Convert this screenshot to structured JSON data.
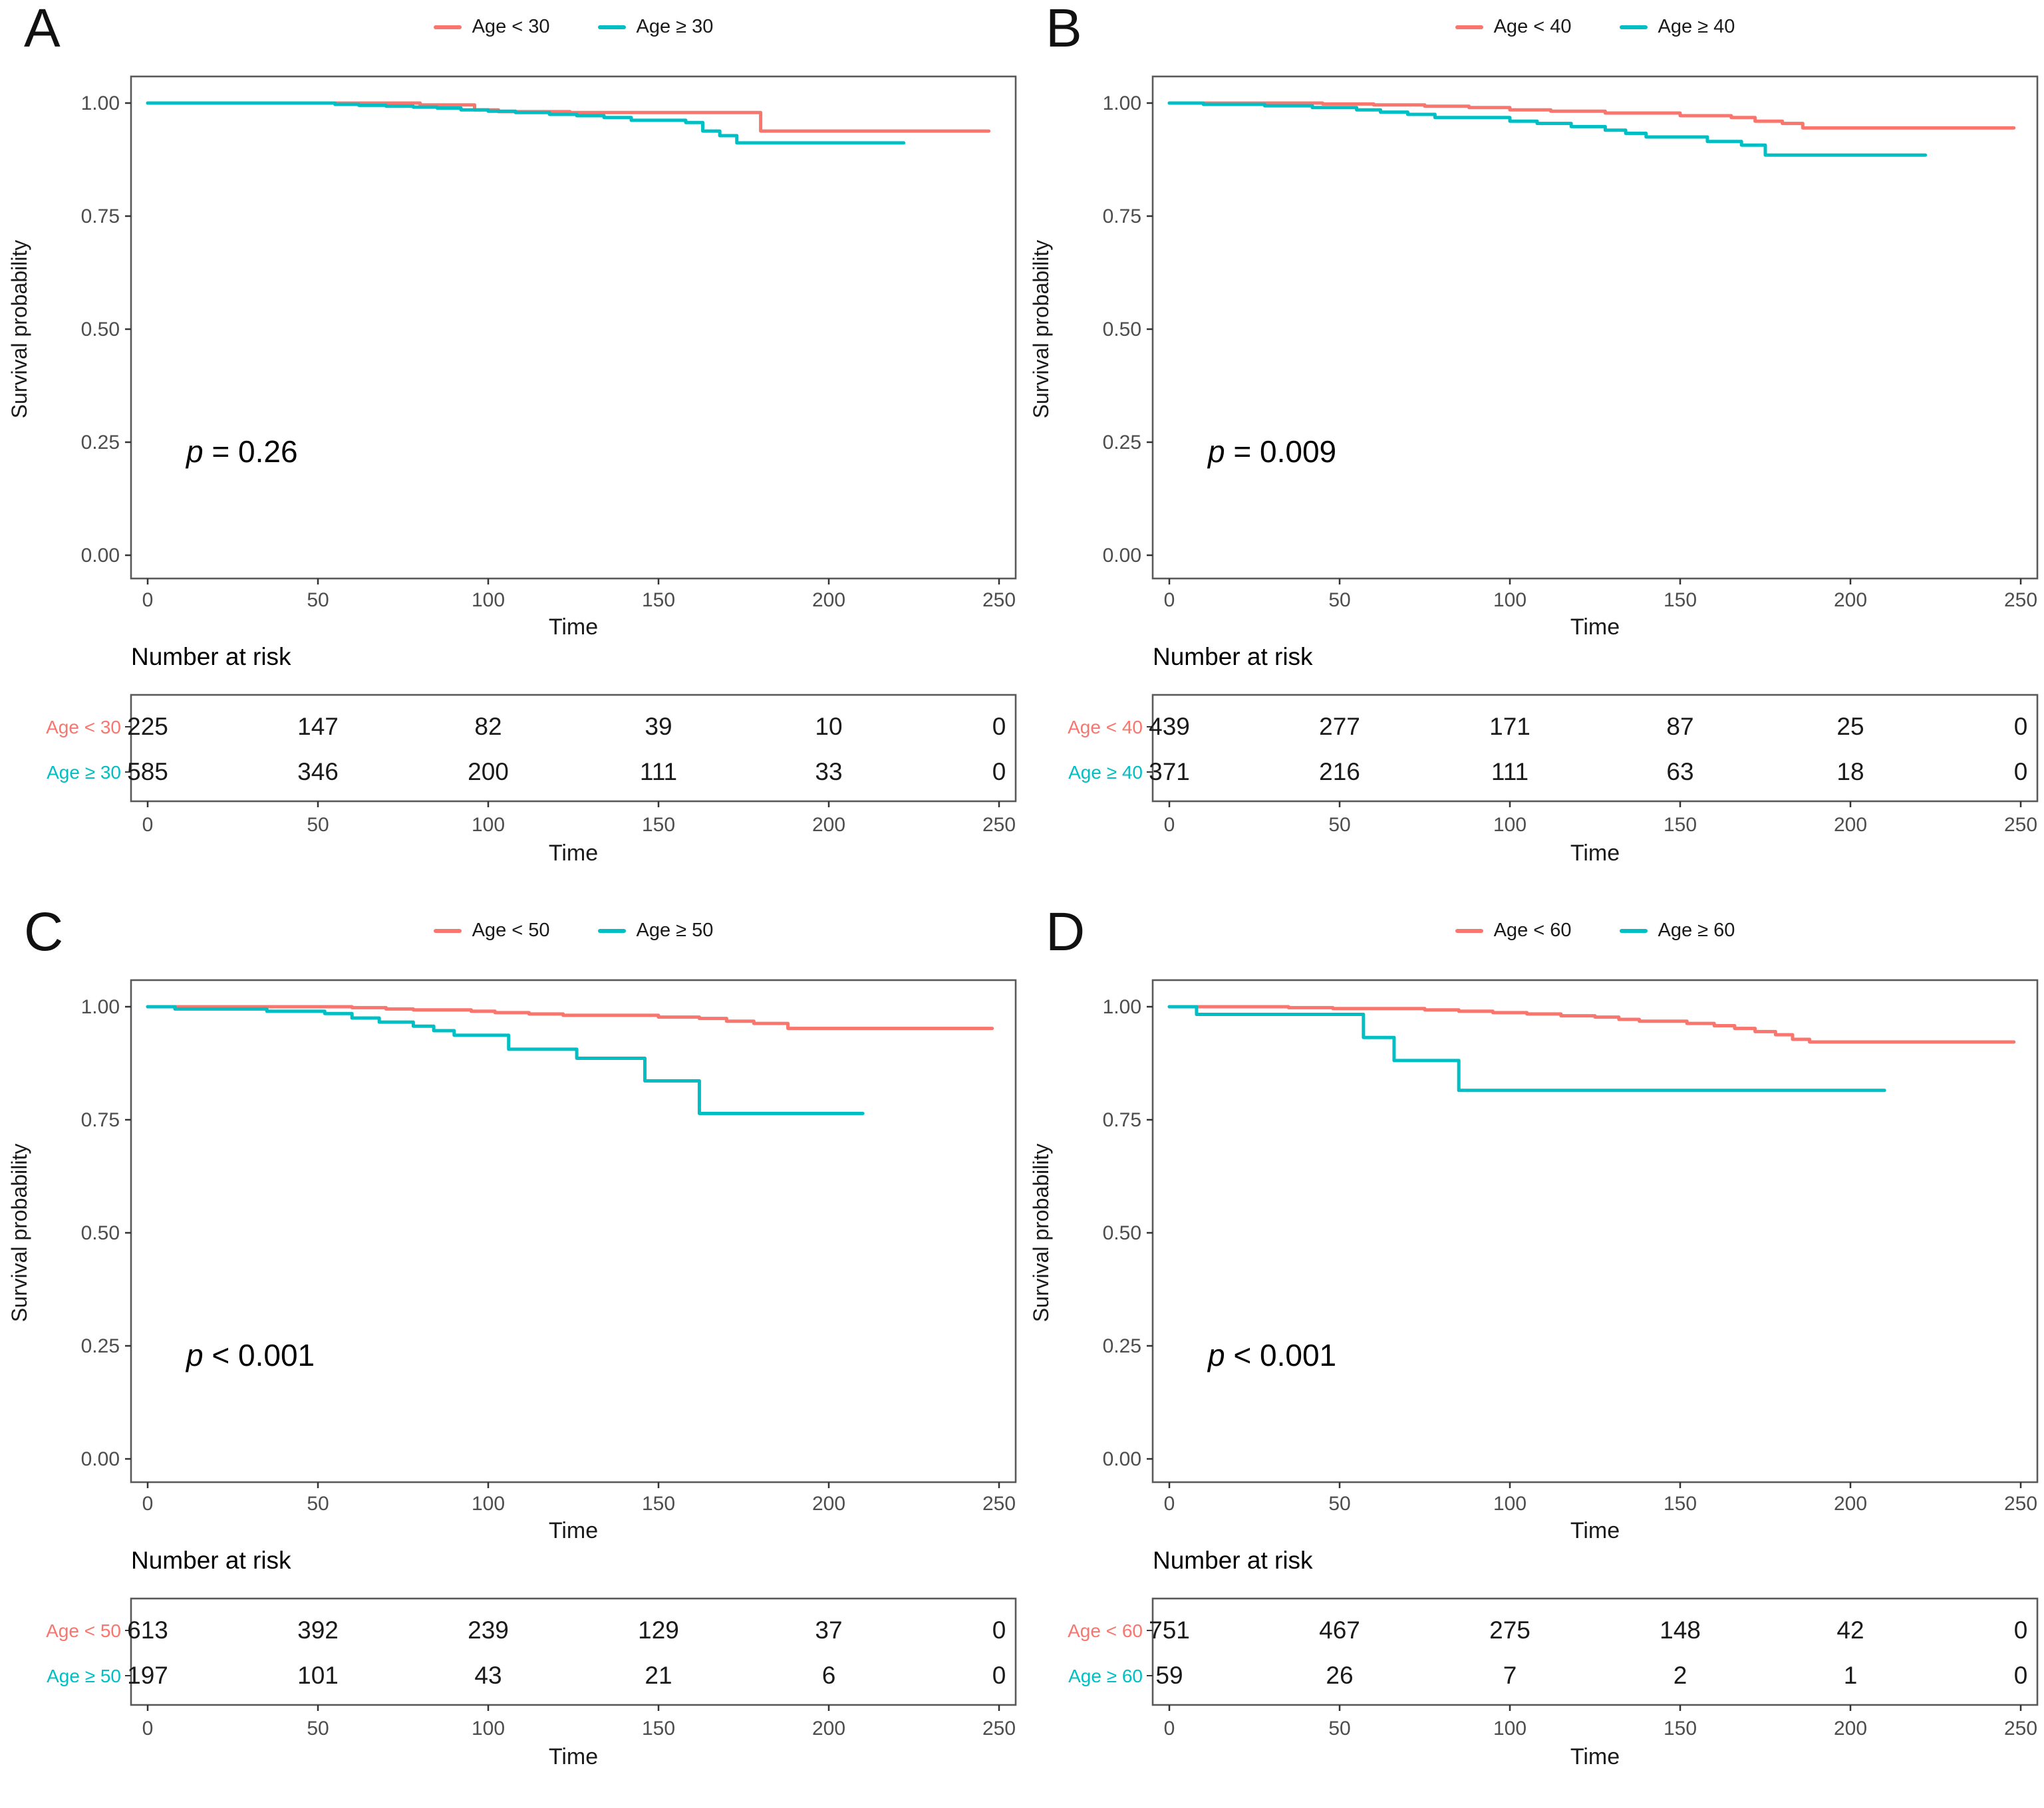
{
  "figure": {
    "background": "#ffffff"
  },
  "colors": {
    "group1": "#F8766D",
    "group2": "#00BFC4",
    "frame": "#595959",
    "tick": "#333333",
    "tick_label": "#4d4d4d",
    "text": "#1a1a1a"
  },
  "axes": {
    "xlabel": "Time",
    "ylabel": "Survival probability",
    "x_ticks": [
      0,
      50,
      100,
      150,
      200,
      250
    ],
    "y_tick_values": [
      1.0,
      0.75,
      0.5,
      0.25,
      0.0
    ],
    "y_tick_labels": [
      "1.00",
      "0.75",
      "0.50",
      "0.25",
      "0.00"
    ],
    "xlim": [
      0,
      250
    ],
    "ylim": [
      0,
      1.0
    ],
    "grid": false,
    "legend_position": "top"
  },
  "risk_title": "Number at risk",
  "chart_data": [
    {
      "panel": "A",
      "type": "line",
      "subtype": "kaplan-meier-step",
      "p_value": "p = 0.26",
      "series": [
        {
          "name": "Age < 30",
          "color": "#F8766D",
          "steps": [
            [
              0,
              1
            ],
            [
              80,
              0.996
            ],
            [
              96,
              0.985
            ],
            [
              103,
              0.981
            ],
            [
              124,
              0.979
            ],
            [
              180,
              0.938
            ],
            [
              247,
              0.938
            ]
          ]
        },
        {
          "name": "Age ≥ 30",
          "color": "#00BFC4",
          "steps": [
            [
              0,
              1
            ],
            [
              55,
              0.997
            ],
            [
              62,
              0.995
            ],
            [
              70,
              0.993
            ],
            [
              78,
              0.991
            ],
            [
              85,
              0.989
            ],
            [
              92,
              0.985
            ],
            [
              100,
              0.982
            ],
            [
              108,
              0.979
            ],
            [
              118,
              0.975
            ],
            [
              126,
              0.972
            ],
            [
              134,
              0.968
            ],
            [
              142,
              0.962
            ],
            [
              158,
              0.957
            ],
            [
              163,
              0.938
            ],
            [
              168,
              0.928
            ],
            [
              173,
              0.912
            ],
            [
              222,
              0.912
            ]
          ]
        }
      ],
      "risk_table": {
        "times": [
          0,
          50,
          100,
          150,
          200,
          250
        ],
        "rows": [
          {
            "label": "Age < 30",
            "counts": [
              225,
              147,
              82,
              39,
              10,
              0
            ]
          },
          {
            "label": "Age ≥ 30",
            "counts": [
              585,
              346,
              200,
              111,
              33,
              0
            ]
          }
        ]
      }
    },
    {
      "panel": "B",
      "type": "line",
      "subtype": "kaplan-meier-step",
      "p_value": "p = 0.009",
      "series": [
        {
          "name": "Age < 40",
          "color": "#F8766D",
          "steps": [
            [
              0,
              1
            ],
            [
              45,
              0.998
            ],
            [
              60,
              0.996
            ],
            [
              75,
              0.993
            ],
            [
              88,
              0.99
            ],
            [
              100,
              0.985
            ],
            [
              112,
              0.982
            ],
            [
              128,
              0.978
            ],
            [
              150,
              0.972
            ],
            [
              165,
              0.968
            ],
            [
              172,
              0.96
            ],
            [
              180,
              0.955
            ],
            [
              186,
              0.945
            ],
            [
              248,
              0.945
            ]
          ]
        },
        {
          "name": "Age ≥ 40",
          "color": "#00BFC4",
          "steps": [
            [
              0,
              1
            ],
            [
              10,
              0.997
            ],
            [
              28,
              0.994
            ],
            [
              42,
              0.99
            ],
            [
              55,
              0.985
            ],
            [
              62,
              0.98
            ],
            [
              70,
              0.975
            ],
            [
              78,
              0.968
            ],
            [
              100,
              0.96
            ],
            [
              108,
              0.955
            ],
            [
              118,
              0.948
            ],
            [
              128,
              0.94
            ],
            [
              134,
              0.933
            ],
            [
              140,
              0.925
            ],
            [
              158,
              0.915
            ],
            [
              168,
              0.907
            ],
            [
              175,
              0.885
            ],
            [
              222,
              0.885
            ]
          ]
        }
      ],
      "risk_table": {
        "times": [
          0,
          50,
          100,
          150,
          200,
          250
        ],
        "rows": [
          {
            "label": "Age < 40",
            "counts": [
              439,
              277,
              171,
              87,
              25,
              0
            ]
          },
          {
            "label": "Age ≥ 40",
            "counts": [
              371,
              216,
              111,
              63,
              18,
              0
            ]
          }
        ]
      }
    },
    {
      "panel": "C",
      "type": "line",
      "subtype": "kaplan-meier-step",
      "p_value": "p < 0.001",
      "series": [
        {
          "name": "Age < 50",
          "color": "#F8766D",
          "steps": [
            [
              0,
              1
            ],
            [
              60,
              0.998
            ],
            [
              70,
              0.995
            ],
            [
              78,
              0.993
            ],
            [
              95,
              0.99
            ],
            [
              102,
              0.987
            ],
            [
              112,
              0.984
            ],
            [
              122,
              0.981
            ],
            [
              150,
              0.977
            ],
            [
              162,
              0.974
            ],
            [
              170,
              0.968
            ],
            [
              178,
              0.963
            ],
            [
              188,
              0.952
            ],
            [
              248,
              0.952
            ]
          ]
        },
        {
          "name": "Age ≥ 50",
          "color": "#00BFC4",
          "steps": [
            [
              0,
              1
            ],
            [
              8,
              0.995
            ],
            [
              35,
              0.99
            ],
            [
              52,
              0.985
            ],
            [
              60,
              0.975
            ],
            [
              68,
              0.966
            ],
            [
              78,
              0.957
            ],
            [
              84,
              0.947
            ],
            [
              90,
              0.937
            ],
            [
              106,
              0.906
            ],
            [
              126,
              0.886
            ],
            [
              146,
              0.836
            ],
            [
              162,
              0.764
            ],
            [
              210,
              0.764
            ]
          ]
        }
      ],
      "risk_table": {
        "times": [
          0,
          50,
          100,
          150,
          200,
          250
        ],
        "rows": [
          {
            "label": "Age < 50",
            "counts": [
              613,
              392,
              239,
              129,
              37,
              0
            ]
          },
          {
            "label": "Age ≥ 50",
            "counts": [
              197,
              101,
              43,
              21,
              6,
              0
            ]
          }
        ]
      }
    },
    {
      "panel": "D",
      "type": "line",
      "subtype": "kaplan-meier-step",
      "p_value": "p < 0.001",
      "series": [
        {
          "name": "Age < 60",
          "color": "#F8766D",
          "steps": [
            [
              0,
              1
            ],
            [
              35,
              0.998
            ],
            [
              48,
              0.996
            ],
            [
              75,
              0.993
            ],
            [
              85,
              0.99
            ],
            [
              95,
              0.987
            ],
            [
              105,
              0.984
            ],
            [
              115,
              0.98
            ],
            [
              125,
              0.977
            ],
            [
              132,
              0.972
            ],
            [
              138,
              0.968
            ],
            [
              152,
              0.963
            ],
            [
              160,
              0.958
            ],
            [
              166,
              0.952
            ],
            [
              172,
              0.945
            ],
            [
              178,
              0.938
            ],
            [
              183,
              0.928
            ],
            [
              188,
              0.922
            ],
            [
              248,
              0.922
            ]
          ]
        },
        {
          "name": "Age ≥ 60",
          "color": "#00BFC4",
          "steps": [
            [
              0,
              1
            ],
            [
              8,
              0.983
            ],
            [
              57,
              0.932
            ],
            [
              66,
              0.881
            ],
            [
              85,
              0.815
            ],
            [
              210,
              0.815
            ]
          ]
        }
      ],
      "risk_table": {
        "times": [
          0,
          50,
          100,
          150,
          200,
          250
        ],
        "rows": [
          {
            "label": "Age < 60",
            "counts": [
              751,
              467,
              275,
              148,
              42,
              0
            ]
          },
          {
            "label": "Age ≥ 60",
            "counts": [
              59,
              26,
              7,
              2,
              1,
              0
            ]
          }
        ]
      }
    }
  ]
}
